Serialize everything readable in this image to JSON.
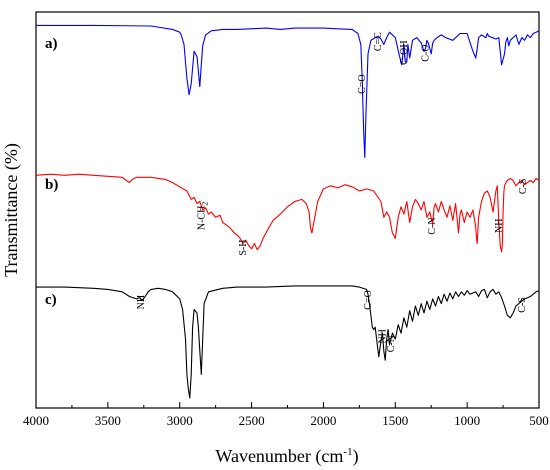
{
  "chart_data": {
    "type": "line",
    "xlabel": "Wavenumber (cm⁻¹)",
    "xlabel_base": "Wavenumber (cm",
    "xlabel_sup": "-1",
    "xlabel_close": ")",
    "ylabel": "Transmittance (%)",
    "xlim": [
      4000,
      500
    ],
    "x_reversed": true,
    "xticks": [
      4000,
      3500,
      3000,
      2500,
      2000,
      1500,
      1000,
      500
    ],
    "xtick_labels": [
      "4000",
      "3500",
      "3000",
      "2500",
      "2000",
      "1500",
      "1000",
      "500"
    ],
    "ylim": [
      0,
      100
    ],
    "y_tick_labels_shown": false,
    "grid": false,
    "series": [
      {
        "name": "a)",
        "color": "#0000ff",
        "x": [
          4000,
          3600,
          3200,
          3050,
          3000,
          2990,
          2970,
          2950,
          2935,
          2920,
          2900,
          2880,
          2860,
          2850,
          2840,
          2820,
          2780,
          2700,
          2600,
          2400,
          2300,
          2200,
          2000,
          1900,
          1800,
          1760,
          1740,
          1730,
          1720,
          1712,
          1705,
          1690,
          1670,
          1640,
          1620,
          1600,
          1580,
          1560,
          1540,
          1500,
          1470,
          1455,
          1440,
          1430,
          1420,
          1412,
          1400,
          1380,
          1350,
          1320,
          1300,
          1290,
          1280,
          1270,
          1260,
          1250,
          1240,
          1230,
          1210,
          1180,
          1150,
          1100,
          1050,
          1000,
          960,
          940,
          930,
          920,
          900,
          870,
          860,
          850,
          800,
          780,
          760,
          740,
          730,
          720,
          710,
          700,
          680,
          660,
          640,
          620,
          600,
          580,
          560,
          540,
          520,
          500
        ],
        "y": [
          99,
          99,
          98.5,
          96,
          94,
          92,
          85,
          60,
          48,
          56,
          80,
          76,
          54,
          70,
          84,
          92,
          95,
          96,
          96,
          97,
          96,
          97,
          97,
          96.5,
          96,
          93,
          85,
          60,
          20,
          2,
          30,
          78,
          88,
          90,
          91,
          89,
          85,
          90,
          94,
          90,
          76,
          70,
          85,
          72,
          72,
          85,
          75,
          88,
          90,
          86,
          80,
          82,
          88,
          86,
          82,
          78,
          86,
          88,
          90,
          92,
          90,
          88,
          93,
          93,
          80,
          75,
          82,
          90,
          92,
          90,
          93,
          91,
          89,
          90,
          70,
          78,
          87,
          90,
          84,
          88,
          90,
          92,
          85,
          90,
          88,
          92,
          90,
          93,
          94,
          95
        ]
      },
      {
        "name": "b)",
        "color": "#ff0000",
        "x": [
          4000,
          3900,
          3800,
          3700,
          3600,
          3500,
          3400,
          3370,
          3350,
          3330,
          3300,
          3200,
          3100,
          3050,
          3000,
          2950,
          2920,
          2900,
          2880,
          2860,
          2840,
          2820,
          2800,
          2780,
          2750,
          2720,
          2700,
          2680,
          2650,
          2620,
          2600,
          2580,
          2560,
          2540,
          2520,
          2500,
          2480,
          2460,
          2440,
          2420,
          2400,
          2380,
          2350,
          2300,
          2250,
          2200,
          2150,
          2120,
          2100,
          2090,
          2080,
          2060,
          2040,
          2000,
          1950,
          1900,
          1850,
          1800,
          1750,
          1700,
          1650,
          1600,
          1580,
          1560,
          1540,
          1520,
          1500,
          1490,
          1480,
          1460,
          1440,
          1420,
          1400,
          1380,
          1360,
          1340,
          1320,
          1300,
          1280,
          1260,
          1240,
          1230,
          1220,
          1200,
          1180,
          1160,
          1140,
          1120,
          1100,
          1080,
          1060,
          1050,
          1040,
          1020,
          1000,
          980,
          960,
          940,
          935,
          930,
          920,
          900,
          880,
          860,
          840,
          820,
          800,
          790,
          780,
          770,
          760,
          755,
          750,
          745,
          740,
          730,
          720,
          700,
          680,
          660,
          640,
          620,
          600,
          580,
          560,
          540,
          520,
          500
        ],
        "y": [
          95,
          96,
          95,
          96,
          95,
          94,
          93,
          90,
          88,
          91,
          93,
          93,
          91,
          88,
          84,
          80,
          72,
          74,
          68,
          70,
          62,
          64,
          58,
          60,
          55,
          57,
          50,
          48,
          45,
          40,
          38,
          35,
          30,
          33,
          28,
          25,
          30,
          24,
          28,
          35,
          40,
          45,
          52,
          58,
          65,
          70,
          72,
          68,
          60,
          45,
          40,
          55,
          70,
          82,
          85,
          83,
          86,
          84,
          80,
          82,
          80,
          70,
          55,
          60,
          55,
          40,
          35,
          45,
          55,
          65,
          58,
          70,
          50,
          65,
          72,
          68,
          62,
          70,
          55,
          60,
          48,
          65,
          68,
          60,
          70,
          62,
          55,
          66,
          52,
          68,
          40,
          58,
          62,
          50,
          60,
          55,
          62,
          45,
          35,
          30,
          55,
          70,
          78,
          80,
          74,
          60,
          80,
          85,
          50,
          28,
          22,
          30,
          60,
          78,
          85,
          88,
          90,
          92,
          90,
          85,
          88,
          90,
          86,
          88,
          90,
          88,
          92,
          90
        ]
      },
      {
        "name": "c)",
        "color": "#000000",
        "x": [
          4000,
          3800,
          3600,
          3500,
          3400,
          3350,
          3300,
          3280,
          3260,
          3240,
          3220,
          3200,
          3150,
          3100,
          3050,
          3000,
          2980,
          2960,
          2950,
          2940,
          2930,
          2920,
          2910,
          2900,
          2880,
          2870,
          2860,
          2850,
          2840,
          2830,
          2800,
          2700,
          2600,
          2400,
          2200,
          2000,
          1800,
          1750,
          1700,
          1690,
          1680,
          1670,
          1660,
          1650,
          1640,
          1635,
          1625,
          1615,
          1600,
          1590,
          1580,
          1570,
          1560,
          1550,
          1540,
          1520,
          1500,
          1480,
          1460,
          1440,
          1420,
          1400,
          1380,
          1360,
          1340,
          1320,
          1300,
          1280,
          1260,
          1240,
          1220,
          1200,
          1180,
          1160,
          1140,
          1120,
          1100,
          1080,
          1060,
          1040,
          1020,
          1000,
          980,
          960,
          940,
          920,
          900,
          880,
          860,
          840,
          820,
          800,
          780,
          760,
          740,
          720,
          700,
          680,
          660,
          640,
          620,
          600,
          580,
          560,
          540,
          520,
          500
        ],
        "y": [
          94,
          94,
          93,
          92,
          90,
          86,
          84,
          85,
          83,
          86,
          90,
          92,
          93,
          92,
          90,
          84,
          75,
          50,
          20,
          8,
          0,
          20,
          60,
          75,
          72,
          60,
          40,
          20,
          50,
          80,
          90,
          93,
          94,
          94,
          95,
          95,
          95,
          94,
          92,
          88,
          80,
          70,
          60,
          58,
          60,
          55,
          45,
          35,
          48,
          55,
          40,
          32,
          50,
          58,
          45,
          55,
          50,
          62,
          55,
          68,
          60,
          74,
          65,
          78,
          70,
          80,
          72,
          82,
          75,
          84,
          78,
          86,
          80,
          88,
          82,
          89,
          84,
          90,
          86,
          90,
          87,
          91,
          88,
          89,
          90,
          86,
          91,
          92,
          85,
          90,
          92,
          88,
          90,
          85,
          78,
          70,
          68,
          72,
          78,
          80,
          82,
          84,
          85,
          86,
          88,
          90,
          91
        ]
      }
    ],
    "annotations": [
      {
        "label": "C=O",
        "x": 1730,
        "series": "a)"
      },
      {
        "label": "C=C",
        "x": 1620,
        "series": "a)"
      },
      {
        "label": "C-OH",
        "x": 1440,
        "series": "a)"
      },
      {
        "label": "C-O",
        "x": 1290,
        "series": "a)"
      },
      {
        "label": "N-CH",
        "sub": "2",
        "x": 2850,
        "series": "b)"
      },
      {
        "label": "S-H",
        "x": 2560,
        "series": "b)"
      },
      {
        "label": "C-N",
        "x": 1245,
        "series": "b)"
      },
      {
        "label": "NH",
        "x": 780,
        "series": "b)"
      },
      {
        "label": "C-S",
        "x": 610,
        "series": "b)"
      },
      {
        "label": "NH",
        "x": 3270,
        "series": "c)"
      },
      {
        "label": "C=O",
        "x": 1690,
        "series": "c)"
      },
      {
        "label": "NH",
        "x": 1590,
        "series": "c)"
      },
      {
        "label": "C-N",
        "x": 1530,
        "series": "c)"
      },
      {
        "label": "C-S",
        "x": 620,
        "series": "c)"
      }
    ]
  }
}
